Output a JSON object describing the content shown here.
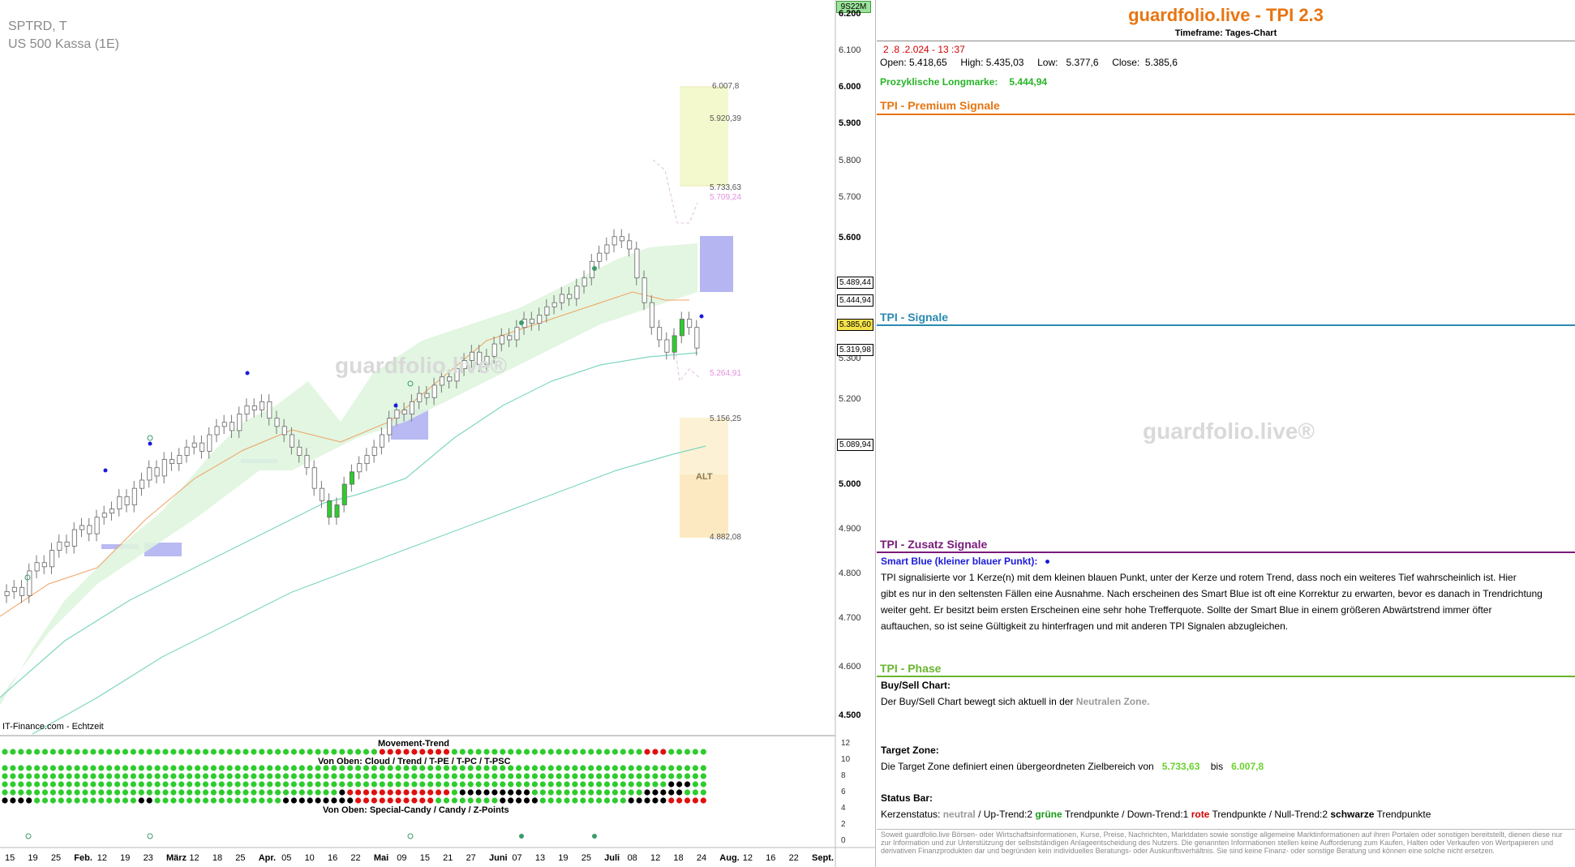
{
  "chart_pane": {
    "symbol": "SPTRD, T",
    "name": "US 500 Kassa (1E)",
    "source": "IT-Finance.com - Echtzeit",
    "watermark": "guardfolio.live®",
    "badge": "9S22M",
    "y_ticks": [
      "6.200",
      "6.100",
      "6.000",
      "5.900",
      "5.800",
      "5.700",
      "5.600",
      "5.300",
      "5.200",
      "5.000",
      "4.900",
      "4.800",
      "4.700",
      "4.600",
      "4.500"
    ],
    "x_ticks": [
      "15",
      "19",
      "25",
      "Feb.",
      "12",
      "19",
      "23",
      "März",
      "12",
      "18",
      "25",
      "Apr.",
      "05",
      "10",
      "16",
      "22",
      "Mai",
      "09",
      "15",
      "21",
      "27",
      "Juni",
      "07",
      "13",
      "19",
      "25",
      "Juli",
      "08",
      "12",
      "18",
      "24",
      "Aug.",
      "12",
      "16",
      "22",
      "Sept."
    ],
    "price_tags": [
      {
        "value": "5.489,44",
        "color": "#c040c0"
      },
      {
        "value": "5.444,94",
        "color": "#e87511"
      },
      {
        "value": "5.385,60",
        "color": "#000000"
      },
      {
        "value": "5.319,98",
        "color": "#2aa0a0"
      },
      {
        "value": "5.089,94",
        "color": "#2aa0a0"
      }
    ],
    "levels": [
      "6.007,8",
      "5.920,39",
      "5.733,63",
      "5.709,24",
      "5.264,91",
      "5.156,25",
      "4.882,08"
    ],
    "alt_label": "ALT",
    "movement_trend_title": "Movement-Trend",
    "rows_title_1": "Von Oben: Cloud / Trend / T-PE / T-PC / T-PSC",
    "rows_title_2": "Von Oben: Special-Candy / Candy / Z-Points",
    "indicator_ticks": [
      "12",
      "10",
      "8",
      "6",
      "4",
      "2",
      "0"
    ],
    "colors": {
      "up": "#2ecc2e",
      "down": "#e01010",
      "neutral": "#000000",
      "accent": "#e87511"
    }
  },
  "chart_data": {
    "type": "candlestick",
    "title": "",
    "ylim": [
      4500,
      6200
    ],
    "close_series": [
      4800,
      4810,
      4790,
      4850,
      4870,
      4860,
      4900,
      4920,
      4910,
      4950,
      4960,
      4940,
      4980,
      4990,
      5000,
      5030,
      5010,
      5050,
      5070,
      5100,
      5080,
      5120,
      5110,
      5130,
      5150,
      5160,
      5140,
      5180,
      5200,
      5210,
      5190,
      5230,
      5250,
      5240,
      5260,
      5220,
      5200,
      5180,
      5150,
      5130,
      5100,
      5050,
      5020,
      4980,
      5010,
      5060,
      5090,
      5110,
      5130,
      5150,
      5180,
      5220,
      5240,
      5230,
      5260,
      5280,
      5270,
      5300,
      5320,
      5310,
      5340,
      5360,
      5380,
      5350,
      5370,
      5400,
      5420,
      5410,
      5440,
      5460,
      5450,
      5470,
      5490,
      5500,
      5520,
      5510,
      5540,
      5560,
      5600,
      5620,
      5640,
      5660,
      5650,
      5630,
      5560,
      5500,
      5440,
      5410,
      5380,
      5420,
      5460,
      5440,
      5390
    ]
  },
  "info_pane": {
    "title": "guardfolio.live - TPI 2.3",
    "timeframe": "Timeframe: Tages-Chart",
    "timestamp": "2 .8 .2.024  - 13 :37",
    "ohlc": "Open: 5.418,65     High: 5.435,03     Low:   5.377,6     Close:  5.385,6",
    "longmarke_label": "Prozyklische Longmarke:",
    "longmarke_value": "5.444,94",
    "sections": {
      "premium": "TPI - Premium Signale",
      "signale": "TPI - Signale",
      "zusatz": "TPI - Zusatz Signale",
      "phase": "TPI - Phase"
    },
    "watermark": "guardfolio.live®",
    "smart_blue_title": "Smart Blue (kleiner blauer Punkt):",
    "smart_blue_text_1": "TPI signalisierte vor 1  Kerze(n) mit dem kleinen blauen Punkt, unter der Kerze und rotem Trend, dass noch ein weiteres Tief wahrscheinlich ist. Hier",
    "smart_blue_text_2": "gibt es nur in den seltensten Fällen eine Ausnahme. Nach erscheinen des Smart Blue ist oft eine Korrektur zu erwarten, bevor es danach in Trendrichtung",
    "smart_blue_text_3": " weiter geht. Er besitzt beim ersten Erscheinen eine sehr hohe Trefferquote. Sollte der Smart Blue in einem größeren Abwärtstrend immer öfter",
    "smart_blue_text_4": "auftauchen, so ist seine Gültigkeit zu hinterfragen und mit anderen TPI Signalen abzugleichen.",
    "buysell_title": "Buy/Sell Chart:",
    "buysell_text": "Der Buy/Sell Chart bewegt sich aktuell in der",
    "buysell_zone": "Neutralen Zone.",
    "target_title": "Target Zone:",
    "target_text": "Die Target Zone definiert einen übergeordneten Zielbereich von",
    "target_from": "5.733,63",
    "target_bis": "bis",
    "target_to": "6.007,8",
    "status_title": "Status Bar:",
    "status_prefix": "Kerzenstatus:",
    "status_neutral": "neutral",
    "status_up": "/ Up-Trend:2",
    "status_green": "grüne",
    "status_tp1": "Trendpunkte  / Down-Trend:1",
    "status_red": "rote",
    "status_tp2": "Trendpunkte / Null-Trend:2",
    "status_black": "schwarze",
    "status_tp3": "Trendpunkte",
    "disclaimer": "Soweit guardfolio.live Börsen- oder Wirtschaftsinformationen, Kurse, Preise, Nachrichten, Marktdaten sowie sonstige allgemeine Marktinformationen auf ihren Portalen oder sonstigen bereitstellt, dienen diese nur zur Information und zur Unterstützung der selbstständigen Anlageentscheidung des Nutzers. Die genannten Informationen stellen keine Aufforderung zum Kaufen, Halten oder Verkaufen von Wertpapieren und derivativen Finanzprodukten dar und begründen kein individuelles Beratungs- oder Auskunftsverhältnis. Sie sind keine Finanz- oder sonstige Beratung und können eine solche nicht ersetzen."
  }
}
